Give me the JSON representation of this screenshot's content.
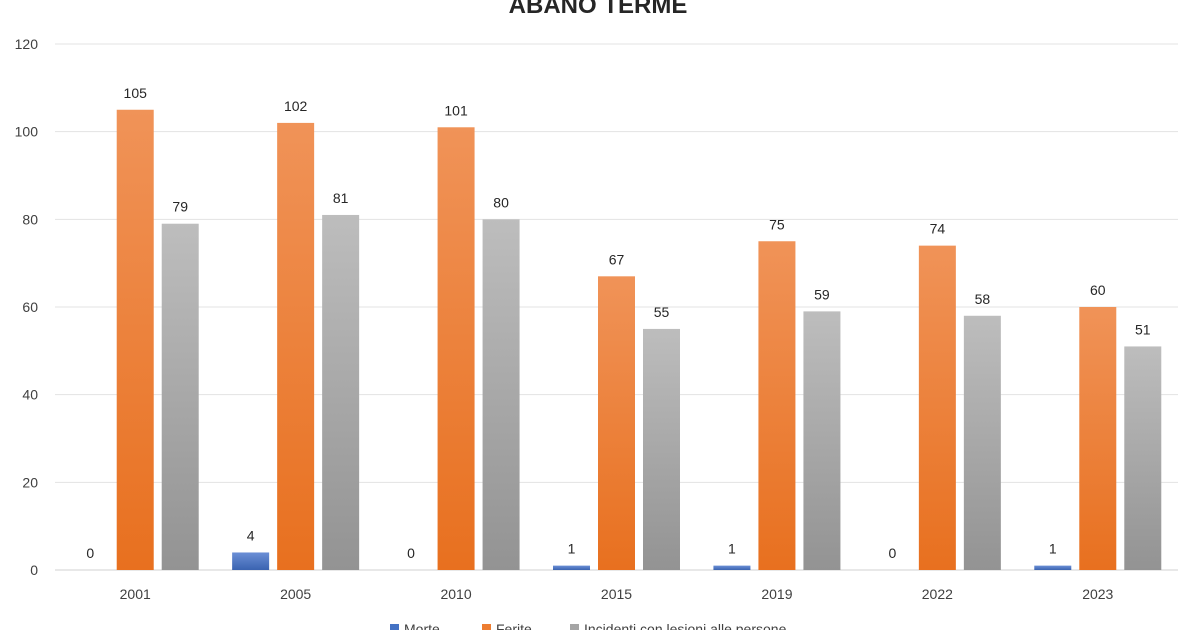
{
  "chart_data": {
    "type": "bar",
    "title": "ABANO TERME",
    "xlabel": "",
    "ylabel": "",
    "categories": [
      "2001",
      "2005",
      "2010",
      "2015",
      "2019",
      "2022",
      "2023"
    ],
    "ylim": [
      0,
      120
    ],
    "yticks": [
      "0",
      "20",
      "40",
      "60",
      "80",
      "100",
      "120"
    ],
    "grid": true,
    "legend_position": "bottom",
    "series": [
      {
        "name": "Morte",
        "color": "#4472C4",
        "values": [
          0,
          4,
          0,
          1,
          1,
          0,
          1
        ]
      },
      {
        "name": "Ferite",
        "color": "#ED7D31",
        "values": [
          105,
          102,
          101,
          67,
          75,
          74,
          60
        ]
      },
      {
        "name": "Incidenti con lesioni alle persone",
        "color": "#A5A5A5",
        "values": [
          79,
          81,
          80,
          55,
          59,
          58,
          51
        ]
      }
    ]
  }
}
